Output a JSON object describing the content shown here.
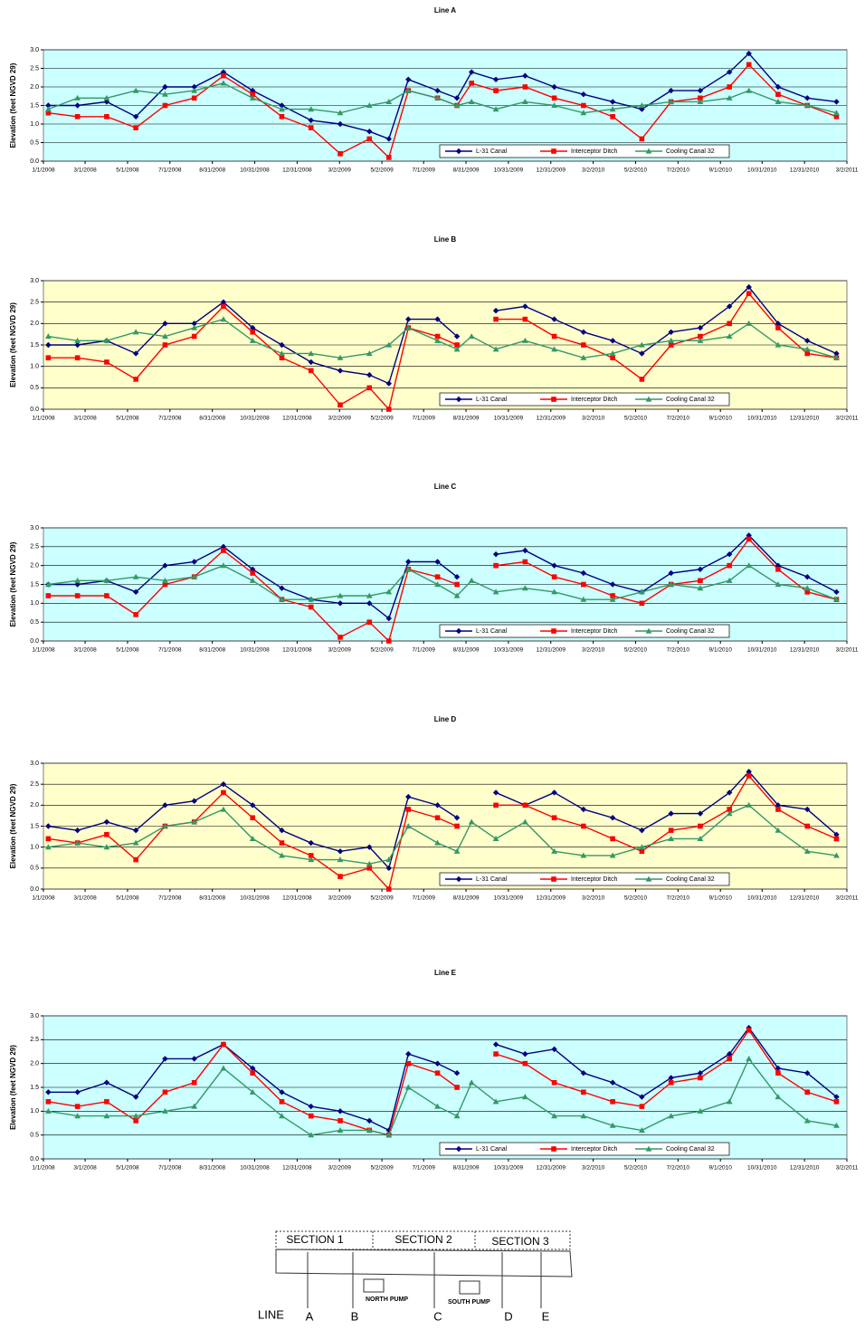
{
  "chart_data": [
    {
      "type": "line",
      "title": "Line A",
      "ylabel": "Elevation (feet NGVD 29)",
      "plot_bg": "#ccffff",
      "grid": true,
      "legend": "lower right",
      "x": [
        "1/8/2008",
        "2/19/2008",
        "4/1/2008",
        "5/13/2008",
        "6/24/2008",
        "8/5/2008",
        "9/16/2008",
        "10/28/2008",
        "12/9/2008",
        "1/20/2009",
        "3/3/2009",
        "4/14/2009",
        "5/12/2009",
        "6/9/2009",
        "7/21/2009",
        "8/18/2009",
        "9/8/2009",
        "10/13/2009",
        "11/24/2009",
        "1/5/2010",
        "2/16/2010",
        "3/30/2010",
        "5/11/2010",
        "6/22/2010",
        "8/3/2010",
        "9/14/2010",
        "10/12/2010",
        "11/23/2010",
        "1/4/2011",
        "2/15/2011"
      ],
      "xlim": [
        "1/1/2008",
        "3/2/2011"
      ],
      "xticks": [
        "1/1/2008",
        "3/1/2008",
        "5/1/2008",
        "7/1/2008",
        "8/31/2008",
        "10/31/2008",
        "12/31/2008",
        "3/2/2009",
        "5/2/2009",
        "7/1/2009",
        "8/31/2009",
        "10/31/2009",
        "12/31/2009",
        "3/2/2010",
        "5/2/2010",
        "7/2/2010",
        "9/1/2010",
        "10/31/2010",
        "12/31/2010",
        "3/2/2011"
      ],
      "ylim": [
        0,
        3
      ],
      "yticks": [
        {
          "value": 0,
          "label": "0.0"
        },
        {
          "value": 0.5,
          "label": "0.5"
        },
        {
          "value": 1,
          "label": "1.0"
        },
        {
          "value": 1.5,
          "label": "1.5"
        },
        {
          "value": 2,
          "label": "2.0"
        },
        {
          "value": 2.5,
          "label": "2.5"
        },
        {
          "value": 3,
          "label": "3.0"
        }
      ],
      "series": [
        {
          "name": "L-31 Canal",
          "color": "#000080",
          "marker": "diamond",
          "values": [
            1.5,
            1.5,
            1.6,
            1.2,
            2.0,
            2.0,
            2.4,
            1.9,
            1.5,
            1.1,
            1.0,
            0.8,
            0.6,
            2.2,
            1.9,
            1.7,
            2.4,
            2.2,
            2.3,
            2.0,
            1.8,
            1.6,
            1.4,
            1.9,
            1.9,
            2.4,
            2.9,
            2.0,
            1.7,
            1.6
          ]
        },
        {
          "name": "Interceptor Ditch",
          "color": "#ff0000",
          "marker": "square",
          "values": [
            1.3,
            1.2,
            1.2,
            0.9,
            1.5,
            1.7,
            2.3,
            1.8,
            1.2,
            0.9,
            0.2,
            0.6,
            0.1,
            1.9,
            1.7,
            1.5,
            2.1,
            1.9,
            2.0,
            1.7,
            1.5,
            1.2,
            0.6,
            1.6,
            1.7,
            2.0,
            2.6,
            1.8,
            1.5,
            1.2
          ]
        },
        {
          "name": "Cooling Canal 32",
          "color": "#339966",
          "marker": "triangle",
          "values": [
            1.4,
            1.7,
            1.7,
            1.9,
            1.8,
            1.9,
            2.1,
            1.7,
            1.4,
            1.4,
            1.3,
            1.5,
            1.6,
            1.9,
            1.7,
            1.5,
            1.6,
            1.4,
            1.6,
            1.5,
            1.3,
            1.4,
            1.5,
            1.6,
            1.6,
            1.7,
            1.9,
            1.6,
            1.5,
            1.3
          ]
        }
      ]
    },
    {
      "type": "line",
      "title": "Line B",
      "ylabel": "Elevation (feet NGVD 29)",
      "plot_bg": "#ffffcc",
      "grid": true,
      "legend": "lower right",
      "x": [
        "1/8/2008",
        "2/19/2008",
        "4/1/2008",
        "5/13/2008",
        "6/24/2008",
        "8/5/2008",
        "9/16/2008",
        "10/28/2008",
        "12/9/2008",
        "1/20/2009",
        "3/3/2009",
        "4/14/2009",
        "5/12/2009",
        "6/9/2009",
        "7/21/2009",
        "8/18/2009",
        "9/8/2009",
        "10/13/2009",
        "11/24/2009",
        "1/5/2010",
        "2/16/2010",
        "3/30/2010",
        "5/11/2010",
        "6/22/2010",
        "8/3/2010",
        "9/14/2010",
        "10/12/2010",
        "11/23/2010",
        "1/4/2011",
        "2/15/2011"
      ],
      "xlim": [
        "1/1/2008",
        "3/2/2011"
      ],
      "xticks": [
        "1/1/2008",
        "3/1/2008",
        "5/1/2008",
        "7/1/2008",
        "8/31/2008",
        "10/31/2008",
        "12/31/2008",
        "3/2/2009",
        "5/2/2009",
        "7/1/2009",
        "8/31/2009",
        "10/31/2009",
        "12/31/2009",
        "3/2/2010",
        "5/2/2010",
        "7/2/2010",
        "9/1/2010",
        "10/31/2010",
        "12/31/2010",
        "3/2/2011"
      ],
      "ylim": [
        0,
        3
      ],
      "yticks": [
        {
          "value": 0,
          "label": "0.0"
        },
        {
          "value": 0.5,
          "label": "0.5"
        },
        {
          "value": 1,
          "label": "1.0"
        },
        {
          "value": 1.5,
          "label": "1.5"
        },
        {
          "value": 2,
          "label": "2.0"
        },
        {
          "value": 2.5,
          "label": "2.5"
        },
        {
          "value": 3,
          "label": "3.0"
        }
      ],
      "series": [
        {
          "name": "L-31 Canal",
          "color": "#000080",
          "marker": "diamond",
          "values": [
            1.5,
            1.5,
            1.6,
            1.3,
            2.0,
            2.0,
            2.5,
            1.9,
            1.5,
            1.1,
            0.9,
            0.8,
            0.6,
            2.1,
            2.1,
            1.7,
            null,
            2.3,
            2.4,
            2.1,
            1.8,
            1.6,
            1.3,
            1.8,
            1.9,
            2.4,
            2.85,
            2.0,
            1.6,
            1.3
          ]
        },
        {
          "name": "Interceptor Ditch",
          "color": "#ff0000",
          "marker": "square",
          "values": [
            1.2,
            1.2,
            1.1,
            0.7,
            1.5,
            1.7,
            2.4,
            1.8,
            1.2,
            0.9,
            0.1,
            0.5,
            0.0,
            1.9,
            1.7,
            1.5,
            null,
            2.1,
            2.1,
            1.7,
            1.5,
            1.2,
            0.7,
            1.5,
            1.7,
            2.0,
            2.7,
            1.9,
            1.3,
            1.2
          ]
        },
        {
          "name": "Cooling Canal 32",
          "color": "#339966",
          "marker": "triangle",
          "values": [
            1.7,
            1.6,
            1.6,
            1.8,
            1.7,
            1.9,
            2.1,
            1.6,
            1.3,
            1.3,
            1.2,
            1.3,
            1.5,
            1.9,
            1.6,
            1.4,
            1.7,
            1.4,
            1.6,
            1.4,
            1.2,
            1.3,
            1.5,
            1.6,
            1.6,
            1.7,
            2.0,
            1.5,
            1.4,
            1.2
          ]
        }
      ]
    },
    {
      "type": "line",
      "title": "Line C",
      "ylabel": "Elevation (feet NGVD 29)",
      "plot_bg": "#ccffff",
      "grid": true,
      "legend": "lower right",
      "x": [
        "1/8/2008",
        "2/19/2008",
        "4/1/2008",
        "5/13/2008",
        "6/24/2008",
        "8/5/2008",
        "9/16/2008",
        "10/28/2008",
        "12/9/2008",
        "1/20/2009",
        "3/3/2009",
        "4/14/2009",
        "5/12/2009",
        "6/9/2009",
        "7/21/2009",
        "8/18/2009",
        "9/8/2009",
        "10/13/2009",
        "11/24/2009",
        "1/5/2010",
        "2/16/2010",
        "3/30/2010",
        "5/11/2010",
        "6/22/2010",
        "8/3/2010",
        "9/14/2010",
        "10/12/2010",
        "11/23/2010",
        "1/4/2011",
        "2/15/2011"
      ],
      "xlim": [
        "1/1/2008",
        "3/2/2011"
      ],
      "xticks": [
        "1/1/2008",
        "3/1/2008",
        "5/1/2008",
        "7/1/2008",
        "8/31/2008",
        "10/31/2008",
        "12/31/2008",
        "3/2/2009",
        "5/2/2009",
        "7/1/2009",
        "8/31/2009",
        "10/31/2009",
        "12/31/2009",
        "3/2/2010",
        "5/2/2010",
        "7/2/2010",
        "9/1/2010",
        "10/31/2010",
        "12/31/2010",
        "3/2/2011"
      ],
      "ylim": [
        0,
        3
      ],
      "yticks": [
        {
          "value": 0,
          "label": "0.0"
        },
        {
          "value": 0.5,
          "label": "0.5"
        },
        {
          "value": 1,
          "label": "1.0"
        },
        {
          "value": 1.5,
          "label": "1.5"
        },
        {
          "value": 2,
          "label": "2.0"
        },
        {
          "value": 2.5,
          "label": "2.5"
        },
        {
          "value": 3,
          "label": "3.0"
        }
      ],
      "series": [
        {
          "name": "L-31 Canal",
          "color": "#000080",
          "marker": "diamond",
          "values": [
            1.5,
            1.5,
            1.6,
            1.3,
            2.0,
            2.1,
            2.5,
            1.9,
            1.4,
            1.1,
            1.0,
            1.0,
            0.6,
            2.1,
            2.1,
            1.7,
            null,
            2.3,
            2.4,
            2.0,
            1.8,
            1.5,
            1.3,
            1.8,
            1.9,
            2.3,
            2.8,
            2.0,
            1.7,
            1.3
          ]
        },
        {
          "name": "Interceptor Ditch",
          "color": "#ff0000",
          "marker": "square",
          "values": [
            1.2,
            1.2,
            1.2,
            0.7,
            1.5,
            1.7,
            2.4,
            1.8,
            1.1,
            0.9,
            0.1,
            0.5,
            0.0,
            1.9,
            1.7,
            1.5,
            null,
            2.0,
            2.1,
            1.7,
            1.5,
            1.2,
            1.0,
            1.5,
            1.6,
            2.0,
            2.7,
            1.9,
            1.3,
            1.1
          ]
        },
        {
          "name": "Cooling Canal 32",
          "color": "#339966",
          "marker": "triangle",
          "values": [
            1.5,
            1.6,
            1.6,
            1.7,
            1.6,
            1.7,
            2.0,
            1.6,
            1.1,
            1.1,
            1.2,
            1.2,
            1.3,
            1.9,
            1.5,
            1.2,
            1.6,
            1.3,
            1.4,
            1.3,
            1.1,
            1.1,
            1.3,
            1.5,
            1.4,
            1.6,
            2.0,
            1.5,
            1.4,
            1.1
          ]
        }
      ]
    },
    {
      "type": "line",
      "title": "Line D",
      "ylabel": "Elevation (feet NGVD 29)",
      "plot_bg": "#ffffcc",
      "grid": true,
      "legend": "lower right",
      "x": [
        "1/8/2008",
        "2/19/2008",
        "4/1/2008",
        "5/13/2008",
        "6/24/2008",
        "8/5/2008",
        "9/16/2008",
        "10/28/2008",
        "12/9/2008",
        "1/20/2009",
        "3/3/2009",
        "4/14/2009",
        "5/12/2009",
        "6/9/2009",
        "7/21/2009",
        "8/18/2009",
        "9/8/2009",
        "10/13/2009",
        "11/24/2009",
        "1/5/2010",
        "2/16/2010",
        "3/30/2010",
        "5/11/2010",
        "6/22/2010",
        "8/3/2010",
        "9/14/2010",
        "10/12/2010",
        "11/23/2010",
        "1/4/2011",
        "2/15/2011"
      ],
      "xlim": [
        "1/1/2008",
        "3/2/2011"
      ],
      "xticks": [
        "1/1/2008",
        "3/1/2008",
        "5/1/2008",
        "7/1/2008",
        "8/31/2008",
        "10/31/2008",
        "12/31/2008",
        "3/2/2009",
        "5/2/2009",
        "7/1/2009",
        "8/31/2009",
        "10/31/2009",
        "12/31/2009",
        "3/2/2010",
        "5/2/2010",
        "7/2/2010",
        "9/1/2010",
        "10/31/2010",
        "12/31/2010",
        "3/2/2011"
      ],
      "ylim": [
        0,
        3
      ],
      "yticks": [
        {
          "value": 0,
          "label": "0.0"
        },
        {
          "value": 0.5,
          "label": "0.5"
        },
        {
          "value": 1,
          "label": "1.0"
        },
        {
          "value": 1.5,
          "label": "1.5"
        },
        {
          "value": 2,
          "label": "2.0"
        },
        {
          "value": 2.5,
          "label": "2.5"
        },
        {
          "value": 3,
          "label": "3.0"
        }
      ],
      "series": [
        {
          "name": "L-31 Canal",
          "color": "#000080",
          "marker": "diamond",
          "values": [
            1.5,
            1.4,
            1.6,
            1.4,
            2.0,
            2.1,
            2.5,
            2.0,
            1.4,
            1.1,
            0.9,
            1.0,
            0.5,
            2.2,
            2.0,
            1.7,
            null,
            2.3,
            2.0,
            2.3,
            1.9,
            1.7,
            1.4,
            1.8,
            1.8,
            2.3,
            2.8,
            2.0,
            1.9,
            1.3
          ]
        },
        {
          "name": "Interceptor Ditch",
          "color": "#ff0000",
          "marker": "square",
          "values": [
            1.2,
            1.1,
            1.3,
            0.7,
            1.5,
            1.6,
            2.3,
            1.7,
            1.1,
            0.8,
            0.3,
            0.5,
            0.0,
            1.9,
            1.7,
            1.5,
            null,
            2.0,
            2.0,
            1.7,
            1.5,
            1.2,
            0.9,
            1.4,
            1.5,
            1.9,
            2.7,
            1.9,
            1.5,
            1.2
          ]
        },
        {
          "name": "Cooling Canal 32",
          "color": "#339966",
          "marker": "triangle",
          "values": [
            1.0,
            1.1,
            1.0,
            1.1,
            1.5,
            1.6,
            1.9,
            1.2,
            0.8,
            0.7,
            0.7,
            0.6,
            0.7,
            1.5,
            1.1,
            0.9,
            1.6,
            1.2,
            1.6,
            0.9,
            0.8,
            0.8,
            1.0,
            1.2,
            1.2,
            1.8,
            2.0,
            1.4,
            0.9,
            0.8
          ]
        }
      ]
    },
    {
      "type": "line",
      "title": "Line E",
      "ylabel": "Elevation (feet NGVD 29)",
      "plot_bg": "#ccffff",
      "grid": true,
      "legend": "lower right",
      "x": [
        "1/8/2008",
        "2/19/2008",
        "4/1/2008",
        "5/13/2008",
        "6/24/2008",
        "8/5/2008",
        "9/16/2008",
        "10/28/2008",
        "12/9/2008",
        "1/20/2009",
        "3/3/2009",
        "4/14/2009",
        "5/12/2009",
        "6/9/2009",
        "7/21/2009",
        "8/18/2009",
        "9/8/2009",
        "10/13/2009",
        "11/24/2009",
        "1/5/2010",
        "2/16/2010",
        "3/30/2010",
        "5/11/2010",
        "6/22/2010",
        "8/3/2010",
        "9/14/2010",
        "10/12/2010",
        "11/23/2010",
        "1/4/2011",
        "2/15/2011"
      ],
      "xlim": [
        "1/1/2008",
        "3/2/2011"
      ],
      "xticks": [
        "1/1/2008",
        "3/1/2008",
        "5/1/2008",
        "7/1/2008",
        "8/31/2008",
        "10/31/2008",
        "12/31/2008",
        "3/2/2009",
        "5/2/2009",
        "7/1/2009",
        "8/31/2009",
        "10/31/2009",
        "12/31/2009",
        "3/2/2010",
        "5/2/2010",
        "7/2/2010",
        "9/1/2010",
        "10/31/2010",
        "12/31/2010",
        "3/2/2011"
      ],
      "ylim": [
        0,
        3
      ],
      "yticks": [
        {
          "value": 0,
          "label": "0.0"
        },
        {
          "value": 0.5,
          "label": "0.5"
        },
        {
          "value": 1,
          "label": "1.0"
        },
        {
          "value": 1.5,
          "label": "1.5"
        },
        {
          "value": 2,
          "label": "2.0"
        },
        {
          "value": 2.5,
          "label": "2.5"
        },
        {
          "value": 3,
          "label": "3.0"
        }
      ],
      "series": [
        {
          "name": "L-31 Canal",
          "color": "#000080",
          "marker": "diamond",
          "values": [
            1.4,
            1.4,
            1.6,
            1.3,
            2.1,
            2.1,
            2.4,
            1.9,
            1.4,
            1.1,
            1.0,
            0.8,
            0.6,
            2.2,
            2.0,
            1.8,
            null,
            2.4,
            2.2,
            2.3,
            1.8,
            1.6,
            1.3,
            1.7,
            1.8,
            2.2,
            2.75,
            1.9,
            1.8,
            1.3
          ]
        },
        {
          "name": "Interceptor Ditch",
          "color": "#ff0000",
          "marker": "square",
          "values": [
            1.2,
            1.1,
            1.2,
            0.8,
            1.4,
            1.6,
            2.4,
            1.8,
            1.2,
            0.9,
            0.8,
            0.6,
            0.5,
            2.0,
            1.8,
            1.5,
            null,
            2.2,
            2.0,
            1.6,
            1.4,
            1.2,
            1.1,
            1.6,
            1.7,
            2.1,
            2.7,
            1.8,
            1.4,
            1.2
          ]
        },
        {
          "name": "Cooling Canal 32",
          "color": "#339966",
          "marker": "triangle",
          "values": [
            1.0,
            0.9,
            0.9,
            0.9,
            1.0,
            1.1,
            1.9,
            1.4,
            0.9,
            0.5,
            0.6,
            0.6,
            0.5,
            1.5,
            1.1,
            0.9,
            1.6,
            1.2,
            1.3,
            0.9,
            0.9,
            0.7,
            0.6,
            0.9,
            1.0,
            1.2,
            2.1,
            1.3,
            0.8,
            0.7
          ]
        }
      ]
    }
  ],
  "diagram": {
    "sections": [
      "SECTION 1",
      "SECTION 2",
      "SECTION 3"
    ],
    "pumps": [
      "NORTH PUMP",
      "SOUTH PUMP"
    ],
    "line_label": "LINE",
    "lines": [
      "A",
      "B",
      "C",
      "D",
      "E"
    ]
  }
}
